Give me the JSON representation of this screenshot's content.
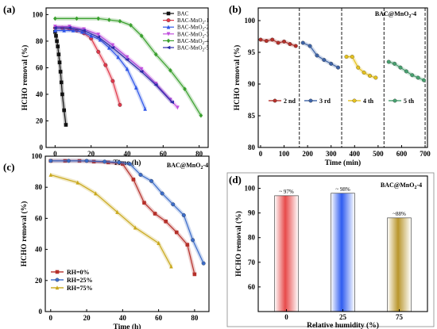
{
  "chart_data": [
    {
      "id": "a",
      "type": "line",
      "panel_label": "(a)",
      "xlabel": "Time (h)",
      "ylabel": "HCHO removal (%)",
      "xlim": [
        -5,
        85
      ],
      "ylim": [
        0,
        105
      ],
      "xticks": [
        0,
        20,
        40,
        60,
        80
      ],
      "yticks": [
        0,
        20,
        40,
        60,
        80,
        100
      ],
      "legend_position": "top-right",
      "series": [
        {
          "name": "BAC",
          "color": "#111111",
          "marker": "square",
          "x": [
            0,
            0.5,
            1,
            1.5,
            2,
            2.5,
            3,
            3.5,
            4,
            5,
            6
          ],
          "y": [
            87,
            84,
            80,
            76,
            70,
            64,
            57,
            49,
            40,
            28,
            17
          ]
        },
        {
          "name": "BAC-MnO2-1",
          "color": "#e0394b",
          "marker": "circle",
          "x": [
            0,
            4,
            8,
            12,
            16,
            20,
            24,
            28,
            32,
            36
          ],
          "y": [
            90,
            90,
            89,
            88,
            86,
            82,
            72,
            62,
            50,
            32
          ]
        },
        {
          "name": "BAC-MnO2-2",
          "color": "#2f56e8",
          "marker": "triangle",
          "x": [
            0,
            5,
            10,
            15,
            20,
            25,
            30,
            35,
            40,
            45,
            50
          ],
          "y": [
            88,
            88,
            88,
            87,
            84,
            81,
            75,
            68,
            59,
            45,
            29
          ]
        },
        {
          "name": "BAC-MnO2-3",
          "color": "#c24fde",
          "marker": "triangle-down",
          "x": [
            0,
            8,
            16,
            24,
            32,
            40,
            48,
            56,
            64,
            68
          ],
          "y": [
            91,
            91,
            89,
            85,
            77,
            68,
            59,
            48,
            36,
            30
          ]
        },
        {
          "name": "BAC-MnO2-4",
          "color": "#3aa02e",
          "marker": "diamond",
          "x": [
            0,
            12,
            24,
            30,
            36,
            42,
            48,
            56,
            64,
            72,
            81
          ],
          "y": [
            97,
            97,
            97,
            96,
            95,
            92,
            84,
            70,
            58,
            44,
            24
          ]
        },
        {
          "name": "BAC-MnO2-5",
          "color": "#2b2ba8",
          "marker": "triangle-left",
          "x": [
            0,
            8,
            16,
            24,
            32,
            40,
            48,
            56,
            65
          ],
          "y": [
            90,
            90,
            88,
            83,
            75,
            66,
            57,
            47,
            34
          ]
        }
      ]
    },
    {
      "id": "b",
      "type": "line",
      "panel_label": "(b)",
      "xlabel": "Time (min)",
      "ylabel": "HCHO removal (%)",
      "xlim": [
        -10,
        710
      ],
      "ylim": [
        80,
        102
      ],
      "xticks": [
        0,
        100,
        200,
        300,
        400,
        500,
        600,
        700
      ],
      "yticks": [
        80,
        85,
        90,
        95,
        100
      ],
      "annotation": "BAC@MnO2-4",
      "cycle_boundaries": [
        165,
        345,
        525,
        700
      ],
      "legend_position": "center",
      "series": [
        {
          "name": "2 nd",
          "color": "#b5302a",
          "marker": "circle",
          "x": [
            0,
            25,
            50,
            75,
            100,
            125,
            150
          ],
          "y": [
            97,
            96.8,
            97,
            96.5,
            96.7,
            96.3,
            96
          ]
        },
        {
          "name": "3 rd",
          "color": "#3d63a6",
          "marker": "circle",
          "x": [
            180,
            210,
            240,
            270,
            300,
            330
          ],
          "y": [
            96.5,
            96,
            94.5,
            93.8,
            93.2,
            92.6
          ]
        },
        {
          "name": "4 th",
          "color": "#e6c21e",
          "marker": "circle",
          "x": [
            365,
            390,
            415,
            440,
            465,
            490
          ],
          "y": [
            94.3,
            94.3,
            92.6,
            91.8,
            91.3,
            91
          ]
        },
        {
          "name": "5 th",
          "color": "#47a06f",
          "marker": "circle",
          "x": [
            545,
            570,
            595,
            620,
            645,
            670,
            695
          ],
          "y": [
            93.5,
            93.2,
            92.6,
            92,
            91.4,
            91,
            90.6
          ]
        }
      ]
    },
    {
      "id": "c",
      "type": "line",
      "panel_label": "(c)",
      "xlabel": "Time (h)",
      "ylabel": "HCHO removal (%)",
      "xlim": [
        -3,
        88
      ],
      "ylim": [
        0,
        100
      ],
      "xticks": [
        0,
        20,
        40,
        60,
        80
      ],
      "yticks": [
        0,
        20,
        40,
        60,
        80,
        100
      ],
      "annotation": "BAC@MnO2-4",
      "legend_position": "bottom-left",
      "series": [
        {
          "name": "RH=0%",
          "color": "#b5302a",
          "marker": "square",
          "x": [
            0,
            8,
            16,
            24,
            32,
            40,
            46,
            52,
            58,
            64,
            70,
            76,
            80
          ],
          "y": [
            97,
            97,
            97,
            96.5,
            96,
            95,
            85,
            70,
            63,
            58,
            51,
            43,
            24
          ]
        },
        {
          "name": "RH=25%",
          "color": "#3b6cc9",
          "marker": "circle",
          "x": [
            0,
            10,
            20,
            30,
            38,
            44,
            50,
            56,
            62,
            68,
            74,
            79,
            85
          ],
          "y": [
            97,
            97,
            97,
            96.5,
            96,
            95,
            88,
            84,
            76,
            69,
            62,
            46,
            31
          ]
        },
        {
          "name": "RH=75%",
          "color": "#c9a81c",
          "marker": "triangle",
          "x": [
            0,
            15,
            25,
            37,
            47,
            60,
            67
          ],
          "y": [
            88,
            83,
            76,
            64,
            54,
            44,
            29
          ]
        }
      ]
    },
    {
      "id": "d",
      "type": "bar",
      "panel_label": "(d)",
      "xlabel": "Relative humidity (%)",
      "ylabel": "HCHO removal (%)",
      "ylim": [
        50,
        105
      ],
      "yticks": [
        60,
        70,
        80,
        90,
        100
      ],
      "annotation": "BAC@MnO2-4",
      "categories": [
        "0",
        "25",
        "75"
      ],
      "values": [
        97,
        98,
        88
      ],
      "data_labels": [
        "~ 97%",
        "~ 98%",
        "~88%"
      ],
      "colors": [
        "#e74a4a",
        "#2f5cf0",
        "#b9962c"
      ]
    }
  ]
}
